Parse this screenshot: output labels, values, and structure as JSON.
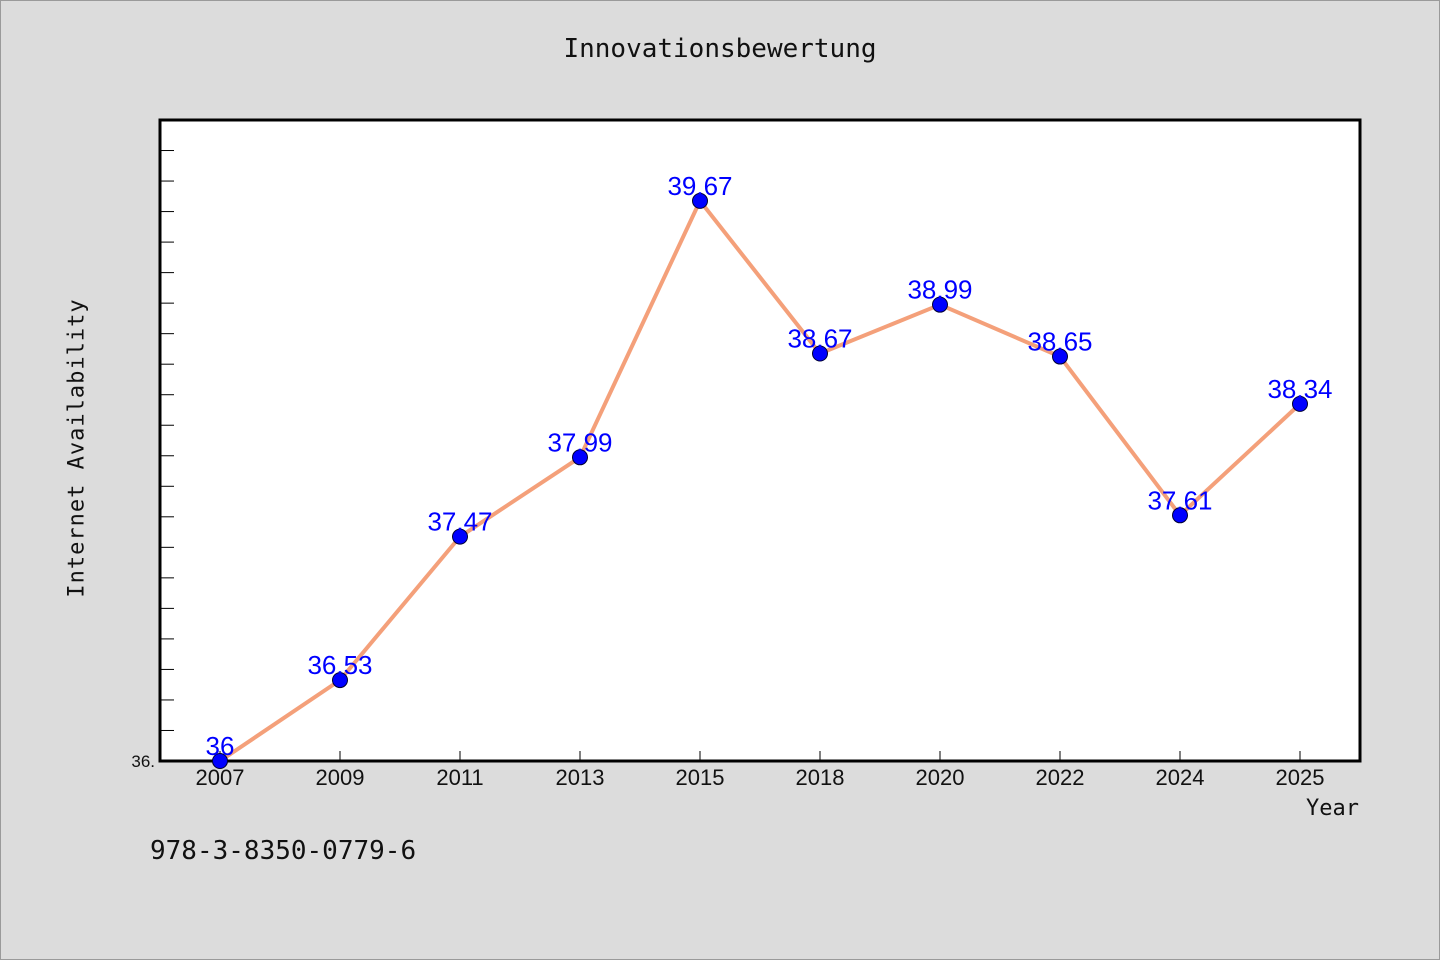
{
  "title": "Innovationsbewertung",
  "footer_text": "978-3-8350-0779-6",
  "y_min_label": "36.",
  "colors": {
    "background": "#dcdcdc",
    "plot_background": "#ffffff",
    "line": "#f4a07a",
    "marker": "#0000ff",
    "data_label": "#0000ff"
  },
  "chart_data": {
    "type": "line",
    "title": "Innovationsbewertung",
    "xlabel": "Year",
    "ylabel": "Internet Availability",
    "categories": [
      "2007",
      "2009",
      "2011",
      "2013",
      "2015",
      "2018",
      "2020",
      "2022",
      "2024",
      "2025"
    ],
    "series": [
      {
        "values": [
          36,
          36.53,
          37.47,
          37.99,
          39.67,
          38.67,
          38.99,
          38.65,
          37.61,
          38.34
        ],
        "labels": [
          "36",
          "36.53",
          "37.47",
          "37.99",
          "39.67",
          "38.67",
          "38.99",
          "38.65",
          "37.61",
          "38.34"
        ]
      }
    ],
    "ylim": [
      36,
      40.2
    ],
    "grid": false,
    "legend": "none"
  }
}
